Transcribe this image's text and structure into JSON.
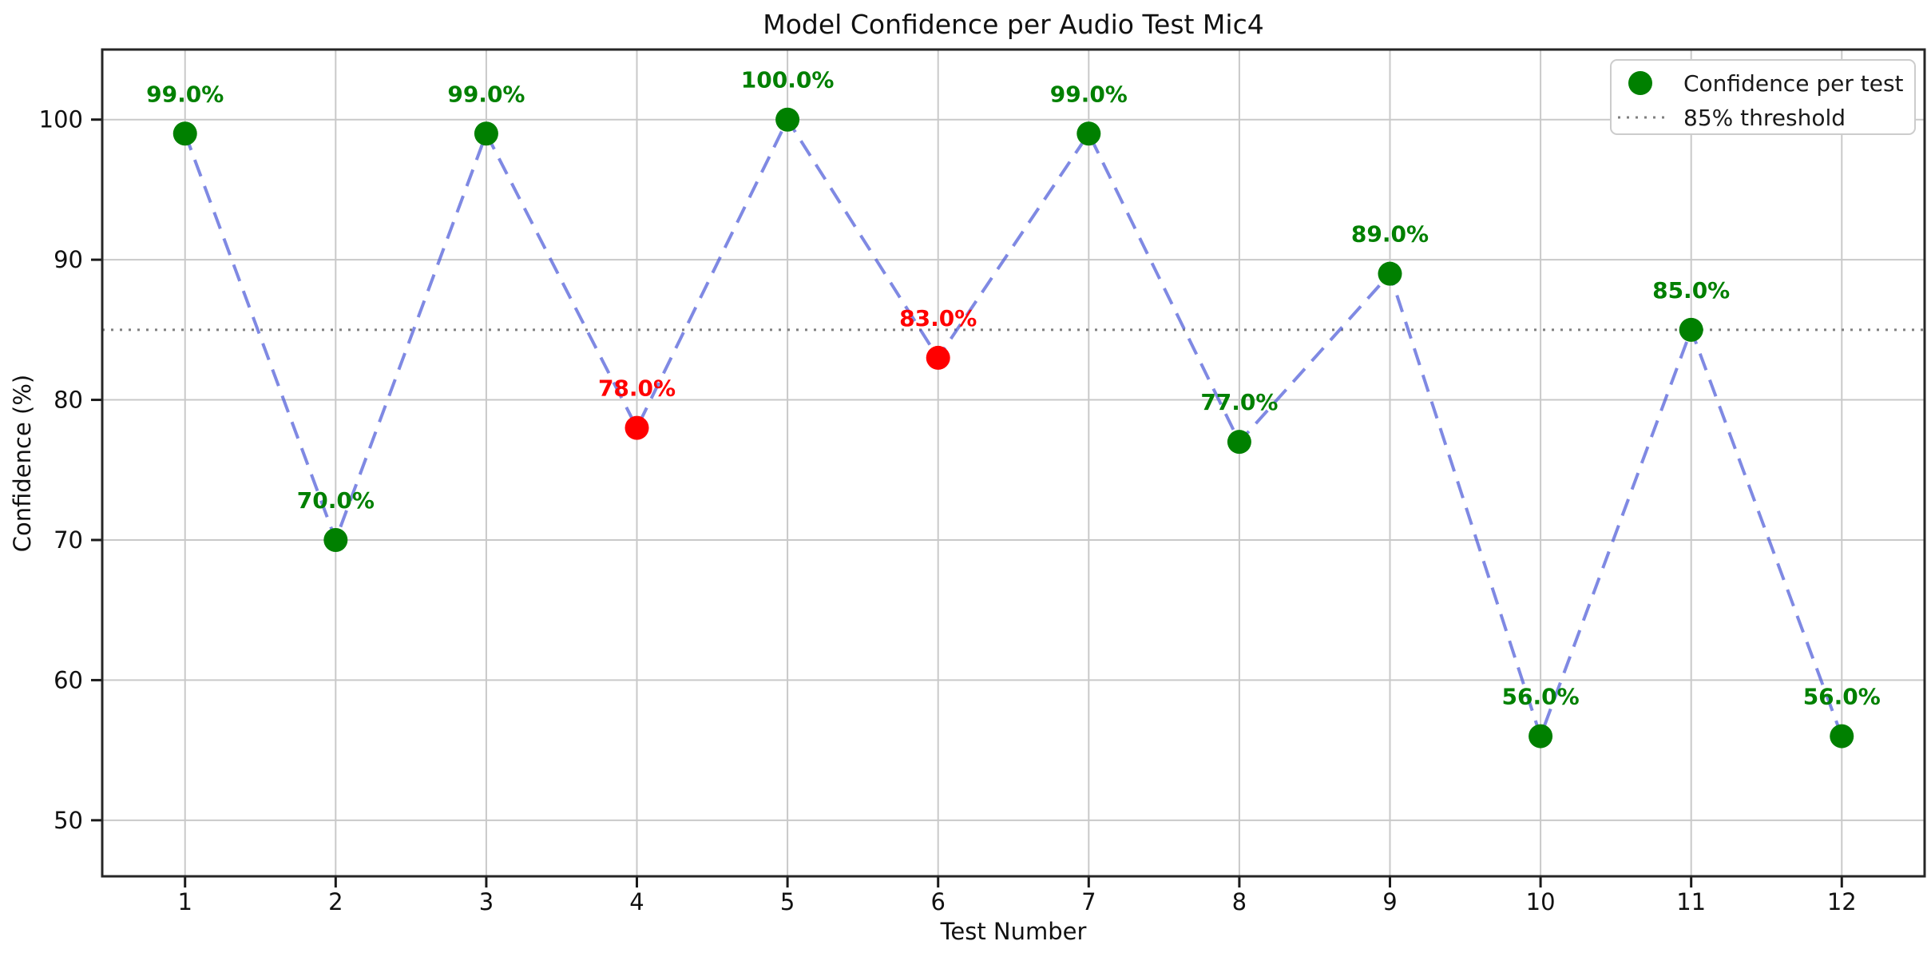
{
  "figure": {
    "title": "Model Confidence per Audio Test Mic4"
  },
  "chart_data": {
    "type": "scatter",
    "title": "Model Confidence per Audio Test Mic4",
    "xlabel": "Test Number",
    "ylabel": "Confidence (%)",
    "x": [
      1,
      2,
      3,
      4,
      5,
      6,
      7,
      8,
      9,
      10,
      11,
      12
    ],
    "values": [
      99,
      70,
      99,
      78,
      100,
      83,
      99,
      77,
      89,
      56,
      85,
      56
    ],
    "labels": [
      "99.0%",
      "70.0%",
      "99.0%",
      "78.0%",
      "100.0%",
      "83.0%",
      "99.0%",
      "77.0%",
      "89.0%",
      "56.0%",
      "85.0%",
      "56.0%"
    ],
    "point_colors": [
      "green",
      "green",
      "green",
      "red",
      "green",
      "red",
      "green",
      "green",
      "green",
      "green",
      "green",
      "green"
    ],
    "label_colors": [
      "green",
      "green",
      "green",
      "red",
      "green",
      "red",
      "green",
      "green",
      "green",
      "green",
      "green",
      "green"
    ],
    "threshold": 85,
    "x_ticks": [
      1,
      2,
      3,
      4,
      5,
      6,
      7,
      8,
      9,
      10,
      11,
      12
    ],
    "y_ticks": [
      50,
      60,
      70,
      80,
      90,
      100
    ],
    "xlim": [
      0.45,
      12.55
    ],
    "ylim": [
      46,
      105
    ],
    "grid": true,
    "line_style": "dashed",
    "legend": [
      "Confidence per test",
      "85% threshold"
    ],
    "legend_position": "upper right",
    "colors": {
      "green": "#008000",
      "red": "#ff0000",
      "line": "#4d5bd8",
      "line_opacity": 0.72,
      "grid": "#c9c9c9",
      "threshold": "#7f7f7f",
      "spine": "#262626",
      "tick": "#1a1a1a"
    }
  }
}
